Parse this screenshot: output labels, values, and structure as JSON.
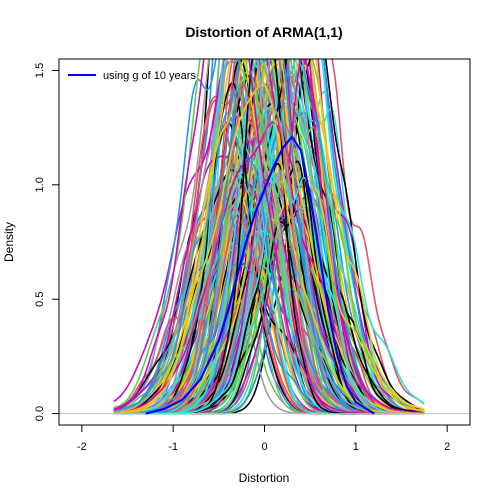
{
  "chart_data": {
    "type": "line",
    "title": "Distortion of ARMA(1,1)",
    "xlabel": "Distortion",
    "ylabel": "Density",
    "xlim": [
      -2.25,
      2.25
    ],
    "ylim": [
      -0.05,
      1.55
    ],
    "xticks": [
      -2,
      -1,
      0,
      1,
      2
    ],
    "xtick_labels": [
      "-2",
      "-1",
      "0",
      "1",
      "2"
    ],
    "yticks": [
      0.0,
      0.5,
      1.0,
      1.5
    ],
    "ytick_labels": [
      "0.0",
      "0.5",
      "1.0",
      "1.5"
    ],
    "grid": false,
    "legend": {
      "position": "top-left",
      "entries": [
        {
          "label": "using g of 10 years",
          "color": "#0000ff"
        }
      ]
    },
    "baseline": {
      "y": 0.0,
      "color": "#bebebe"
    },
    "ensemble": {
      "description_count": 160,
      "center_range": [
        -0.45,
        0.45
      ],
      "spread_range": [
        0.22,
        0.5
      ],
      "peak_range": [
        0.8,
        2.0
      ],
      "support": [
        -1.65,
        1.75
      ],
      "colors": [
        "#000000",
        "#df536b",
        "#61d04f",
        "#2297e6",
        "#28e2e5",
        "#cd0bbc",
        "#f5c710",
        "#9e9e9e"
      ]
    },
    "series": [
      {
        "label": "using g of 10 years",
        "color": "#0000ff",
        "x": [
          -1.3,
          -1.1,
          -0.9,
          -0.7,
          -0.5,
          -0.4,
          -0.3,
          -0.2,
          -0.1,
          0.0,
          0.1,
          0.2,
          0.3,
          0.4,
          0.5,
          0.6,
          0.7,
          0.8,
          0.9,
          1.0,
          1.2
        ],
        "y": [
          0.0,
          0.02,
          0.06,
          0.15,
          0.32,
          0.45,
          0.6,
          0.75,
          0.88,
          0.98,
          1.08,
          1.16,
          1.21,
          1.15,
          0.95,
          0.7,
          0.45,
          0.25,
          0.12,
          0.05,
          0.0
        ]
      }
    ]
  }
}
